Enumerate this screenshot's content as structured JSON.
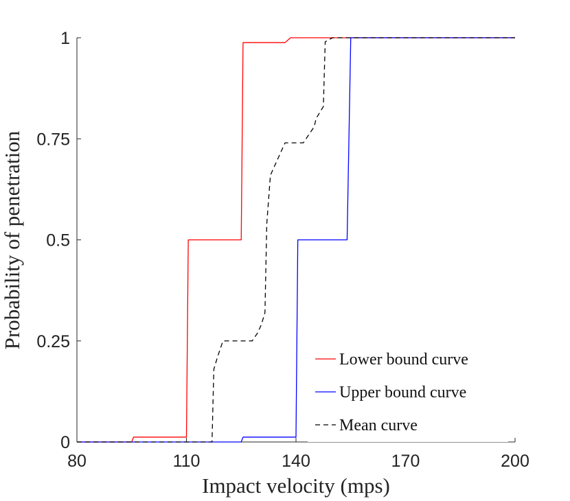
{
  "chart_data": {
    "type": "line",
    "title": "",
    "xlabel": "Impact velocity (mps)",
    "ylabel": "Probability of penetration",
    "xlim": [
      80,
      200
    ],
    "ylim": [
      0,
      1
    ],
    "xticks": [
      80,
      110,
      140,
      170,
      200
    ],
    "xtick_labels": [
      "80",
      "110",
      "140",
      "170",
      "200"
    ],
    "yticks": [
      0,
      0.25,
      0.5,
      0.75,
      1
    ],
    "ytick_labels": [
      "0",
      "0.25",
      "0.5",
      "0.75",
      "1"
    ],
    "grid": false,
    "legend_position": "bottom-right",
    "series": [
      {
        "name": "Lower bound curve",
        "color": "#ff0000",
        "dash": "solid",
        "x": [
          80,
          95,
          95.5,
          110,
          110.5,
          125,
          125.5,
          137,
          138.5,
          155,
          200
        ],
        "y": [
          0,
          0,
          0.012,
          0.012,
          0.5,
          0.5,
          0.988,
          0.988,
          1,
          1,
          1
        ]
      },
      {
        "name": "Upper bound curve",
        "color": "#0000ff",
        "dash": "solid",
        "x": [
          80,
          125,
          125.5,
          140,
          140.5,
          154,
          155,
          200
        ],
        "y": [
          0,
          0,
          0.012,
          0.012,
          0.5,
          0.5,
          1,
          1
        ]
      },
      {
        "name": "Mean curve",
        "color": "#000000",
        "dash": "dashed",
        "x": [
          80,
          117,
          117.5,
          118.5,
          120,
          128,
          129.5,
          130.5,
          131.5,
          132,
          133,
          134.5,
          137,
          140.5,
          142,
          143.5,
          145,
          145.5,
          147.5,
          148,
          150,
          200
        ],
        "y": [
          0,
          0,
          0.18,
          0.21,
          0.25,
          0.25,
          0.27,
          0.29,
          0.32,
          0.54,
          0.66,
          0.69,
          0.74,
          0.74,
          0.74,
          0.76,
          0.78,
          0.8,
          0.83,
          0.99,
          1,
          1
        ]
      }
    ]
  }
}
